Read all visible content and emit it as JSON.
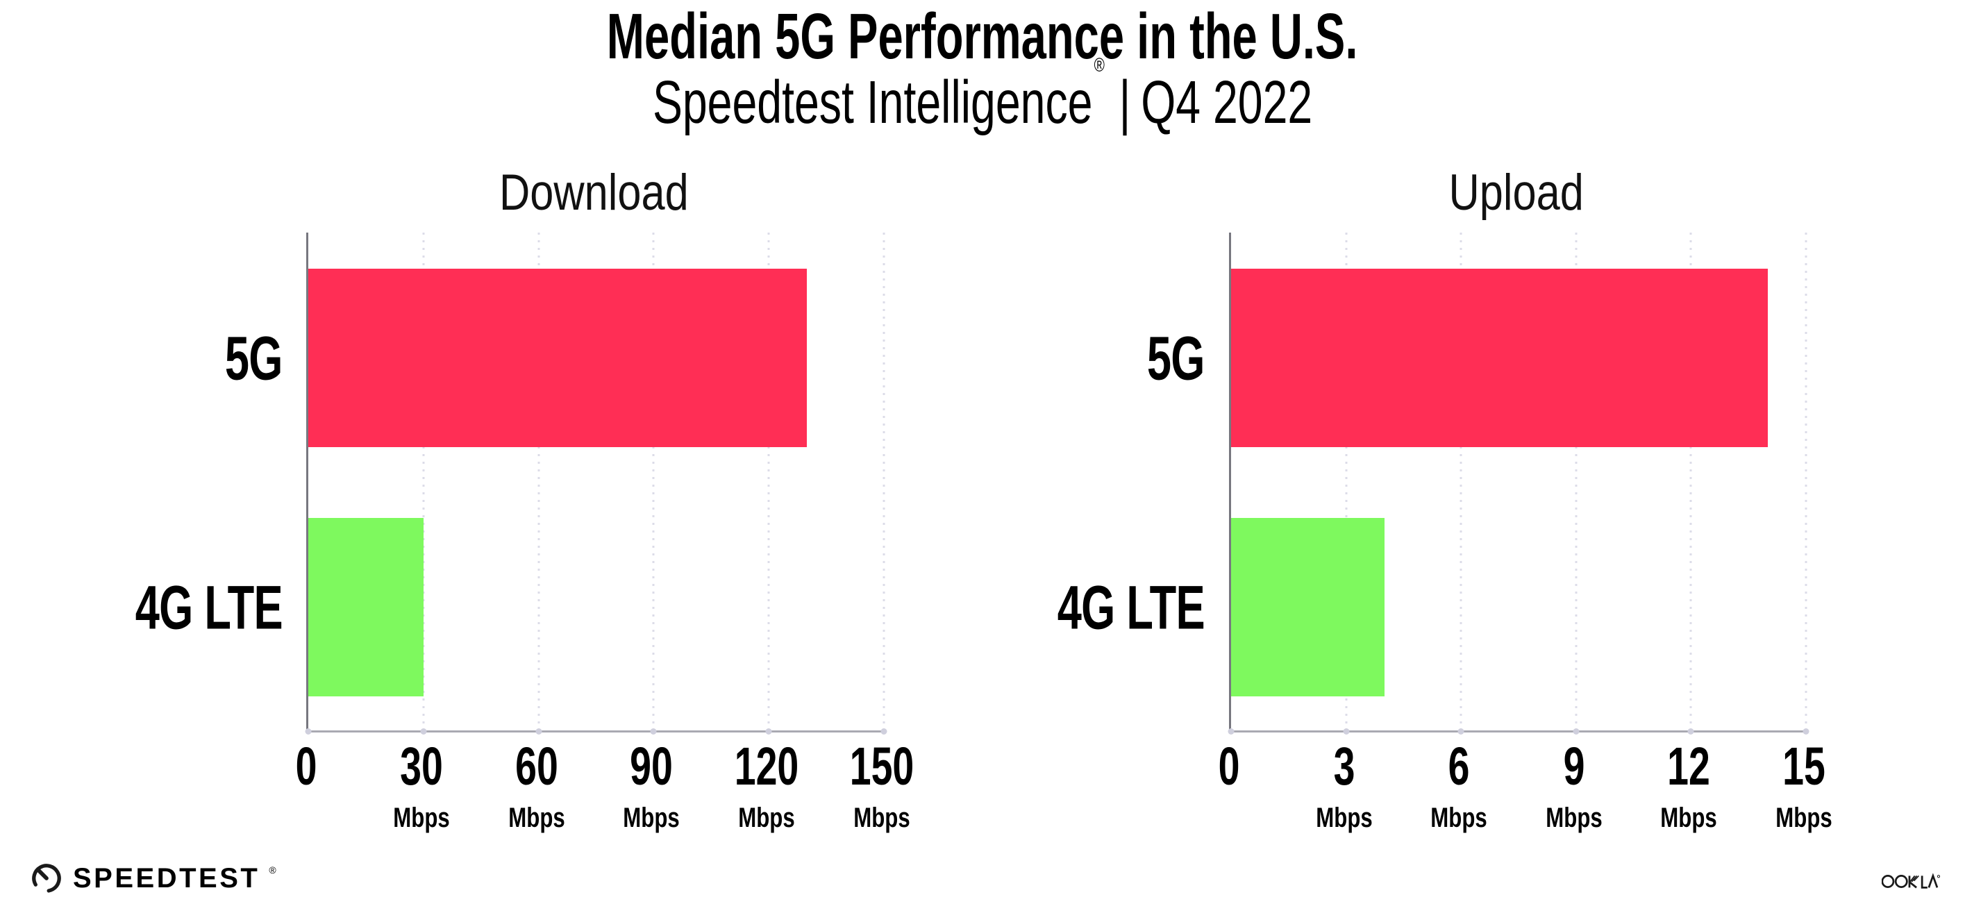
{
  "header": {
    "title": "Median 5G Performance in the U.S.",
    "subtitle": {
      "brand": "Speedtest Intelligence",
      "registered_mark": "®",
      "separator": "|",
      "period": "Q4 2022"
    }
  },
  "chart_data": [
    {
      "type": "bar",
      "orientation": "horizontal",
      "title": "Download",
      "categories": [
        "5G",
        "4G LTE"
      ],
      "values": [
        130,
        30
      ],
      "unit": "Mbps",
      "xlabel": "",
      "ylabel": "",
      "xlim": [
        0,
        150
      ],
      "xticks": [
        0,
        30,
        60,
        90,
        120,
        150
      ],
      "bar_colors": [
        "#ff2e55",
        "#7ef95e"
      ],
      "grid": "dotted-vertical",
      "legend": "none"
    },
    {
      "type": "bar",
      "orientation": "horizontal",
      "title": "Upload",
      "categories": [
        "5G",
        "4G LTE"
      ],
      "values": [
        14,
        4
      ],
      "unit": "Mbps",
      "xlabel": "",
      "ylabel": "",
      "xlim": [
        0,
        15
      ],
      "xticks": [
        0,
        3,
        6,
        9,
        12,
        15
      ],
      "bar_colors": [
        "#ff2e55",
        "#7ef95e"
      ],
      "grid": "dotted-vertical",
      "legend": "none"
    }
  ],
  "footer": {
    "speedtest_wordmark": "SPEEDTEST",
    "speedtest_mark": "®",
    "ookla_wordmark": "OOKLA",
    "ookla_mark": "®"
  },
  "colors": {
    "bar_5g": "#ff2e55",
    "bar_4g_lte": "#7ef95e",
    "gridline": "#dcdce8",
    "y_axis": "#77777f",
    "x_axis": "#a9a9b2",
    "text": "#000000"
  }
}
